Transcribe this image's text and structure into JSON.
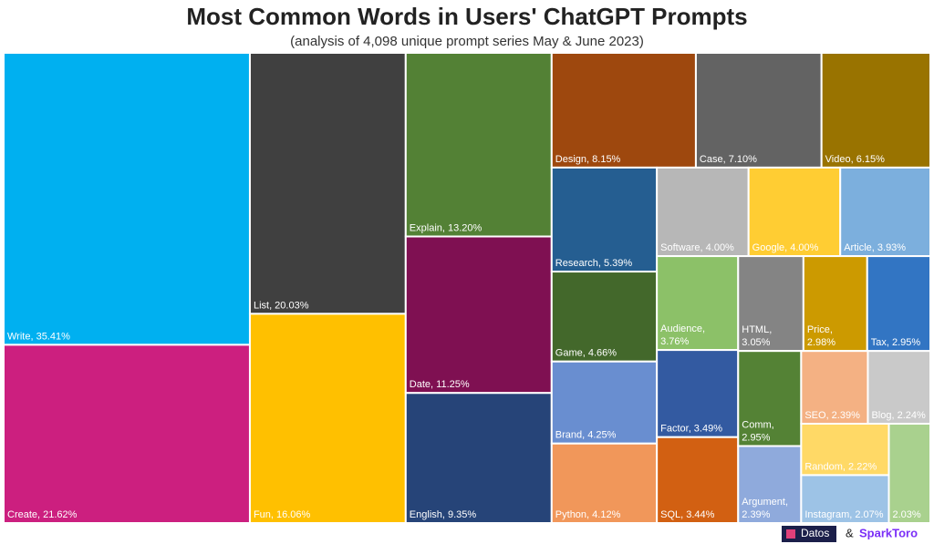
{
  "chart_data": {
    "type": "treemap",
    "title": "Most Common Words in Users' ChatGPT Prompts",
    "subtitle": "(analysis of 4,098 unique prompt series May & June 2023)",
    "values": [
      35.41,
      21.62,
      20.03,
      16.06,
      13.2,
      11.25,
      9.35,
      8.15,
      7.1,
      6.15,
      5.39,
      4.66,
      4.25,
      4.12,
      4.0,
      4.0,
      3.93,
      3.76,
      3.49,
      3.44,
      3.05,
      2.98,
      2.95,
      2.95,
      2.39,
      2.39,
      2.24,
      2.22,
      2.07,
      2.03
    ],
    "value_labels": [
      "Write, 35.41%",
      "Create, 21.62%",
      "List, 20.03%",
      "Fun, 16.06%",
      "Explain, 13.20%",
      "Date, 11.25%",
      "English, 9.35%",
      "Design, 8.15%",
      "Case, 7.10%",
      "Video, 6.15%",
      "Research, 5.39%",
      "Game, 4.66%",
      "Brand, 4.25%",
      "Python, 4.12%",
      "Software, 4.00%",
      "Google, 4.00%",
      "Article, 3.93%",
      "Audience, 3.76%",
      "Factor, 3.49%",
      "SQL, 3.44%",
      "HTML, 3.05%",
      "Price, 2.98%",
      "Tax, 2.95%",
      "Comm, 2.95%",
      "Argument, 2.39%",
      "SEO, 2.39%",
      "Blog, 2.24%",
      "Random, 2.22%",
      "Instagram, 2.07%",
      "2.03%"
    ],
    "colors": [
      "#00b0f0",
      "#cc1f7f",
      "#404040",
      "#ffc000",
      "#538135",
      "#7f1052",
      "#264478",
      "#9e480e",
      "#636363",
      "#997300",
      "#255e91",
      "#43682b",
      "#698ed0",
      "#f1975a",
      "#b7b7b7",
      "#ffcd33",
      "#7cafdd",
      "#8cc168",
      "#335aa1",
      "#d26012",
      "#848484",
      "#cc9a00",
      "#3275c3",
      "#548235",
      "#8faadc",
      "#f4b183",
      "#c9c9c9",
      "#ffd966",
      "#9dc3e6",
      "#a9d18e"
    ]
  },
  "footer": {
    "brand1": "Datos",
    "separator": "&",
    "brand2": "SparkToro"
  }
}
